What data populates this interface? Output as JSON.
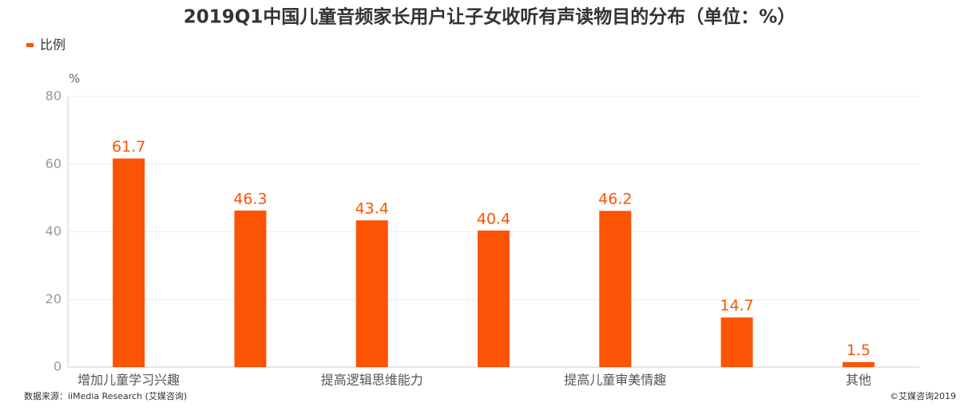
{
  "chart_data": {
    "type": "bar",
    "title": "2019Q1中国儿童音频家长用户让子女收听有声读物目的分布（单位：%）",
    "y_label": "%",
    "categories": [
      "增加儿童学习兴趣",
      null,
      "提高逻辑思维能力",
      null,
      "提高儿童审美情趣",
      null,
      "其他"
    ],
    "series": [
      {
        "name": "比例",
        "color": "#fc5305",
        "values": [
          61.7,
          46.3,
          43.4,
          40.4,
          46.2,
          14.7,
          1.5
        ]
      }
    ],
    "ylim": [
      0,
      80
    ],
    "yticks": [
      0,
      20,
      40,
      60,
      80
    ],
    "grid": true,
    "legend": "top-left",
    "source": "数据来源：iiMedia Research (艾媒咨询)",
    "copyright": "©艾媒咨询2019"
  }
}
